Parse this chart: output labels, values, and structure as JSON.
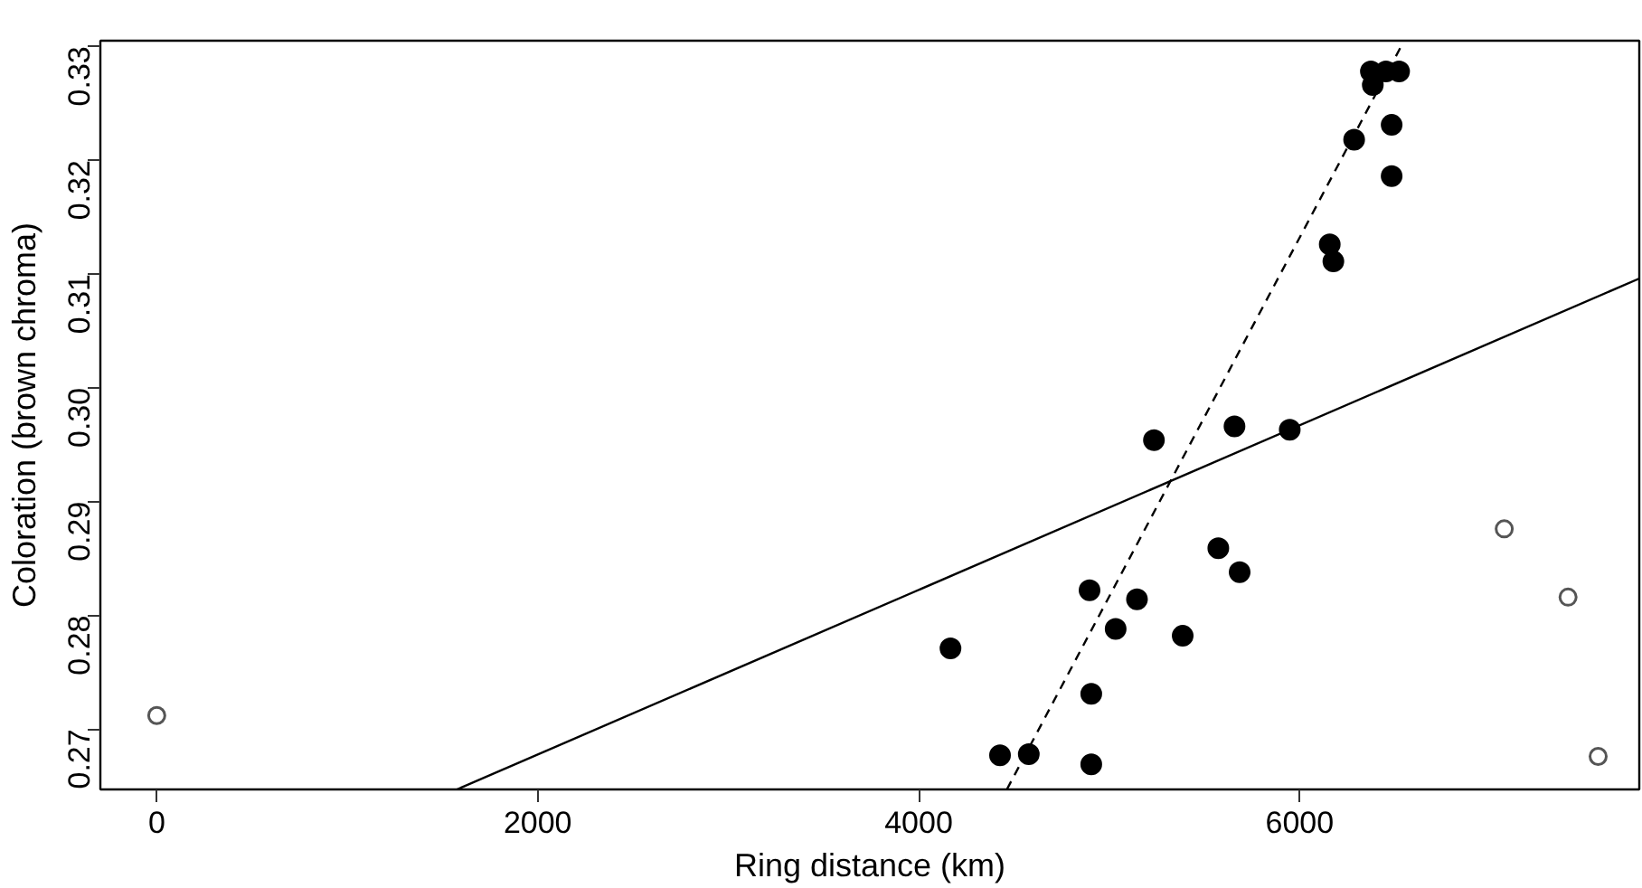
{
  "chart_data": {
    "type": "scatter",
    "xlabel": "Ring distance (km)",
    "ylabel": "Coloration (brown chroma)",
    "xlim": [
      -296,
      7783
    ],
    "ylim": [
      0.2647,
      0.3305
    ],
    "xticks": [
      0,
      2000,
      4000,
      6000
    ],
    "yticks": [
      {
        "value": 0.27,
        "label": "0.27"
      },
      {
        "value": 0.28,
        "label": "0.28"
      },
      {
        "value": 0.29,
        "label": "0.29"
      },
      {
        "value": 0.3,
        "label": "0.30"
      },
      {
        "value": 0.31,
        "label": "0.31"
      },
      {
        "value": 0.32,
        "label": "0.32"
      },
      {
        "value": 0.33,
        "label": "0.33"
      }
    ],
    "grid": false,
    "series": [
      {
        "marker": "circle",
        "color": "#000000",
        "x": [
          4167,
          4427,
          4578,
          4906,
          4906,
          4897,
          5034,
          5146,
          5386,
          5573,
          5685,
          5235,
          5658,
          5948,
          6158,
          6177,
          6286,
          6374,
          6384,
          6453,
          6522,
          6483,
          6483
        ],
        "values": [
          0.2771,
          0.2677,
          0.2678,
          0.2669,
          0.2731,
          0.2822,
          0.2788,
          0.2814,
          0.2782,
          0.2859,
          0.2838,
          0.2954,
          0.2966,
          0.2963,
          0.3126,
          0.3111,
          0.3218,
          0.3278,
          0.3266,
          0.3278,
          0.3278,
          0.3231,
          0.3186
        ]
      },
      {
        "marker": "circle",
        "color": "#555555",
        "x": [
          0,
          7074,
          7409,
          7567
        ],
        "values": [
          0.2712,
          0.2876,
          0.2816,
          0.2676
        ]
      },
      {
        "type": "line",
        "color": "#000000",
        "line_style": "solid",
        "x": [
          1576,
          7783
        ],
        "values": [
          0.2647,
          0.3096
        ]
      },
      {
        "type": "line",
        "color": "#000000",
        "line_style": "dashed",
        "x": [
          4463,
          6542
        ],
        "values": [
          0.2647,
          0.3303
        ]
      }
    ]
  }
}
